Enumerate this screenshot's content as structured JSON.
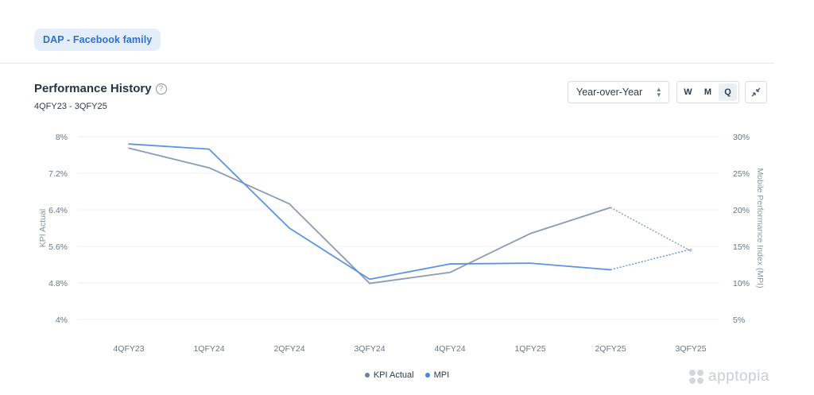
{
  "tab": {
    "label": "DAP - Facebook family"
  },
  "header": {
    "title": "Performance History",
    "subtitle": "4QFY23 - 3QFY25"
  },
  "controls": {
    "comparison_select": {
      "value": "Year-over-Year"
    },
    "granularity": {
      "options": [
        "W",
        "M",
        "Q"
      ],
      "selected": "Q"
    }
  },
  "icons": {
    "help": "help-circle-icon",
    "select_chevron": "chevron-up-down-icon",
    "collapse": "collapse-arrows-icon",
    "brand": "apptopia-logo-icon"
  },
  "brand": {
    "name": "apptopia"
  },
  "chart_data": {
    "type": "line",
    "x": [
      "4QFY23",
      "1QFY24",
      "2QFY24",
      "3QFY24",
      "4QFY24",
      "1QFY25",
      "2QFY25",
      "3QFY25"
    ],
    "left_axis": {
      "label": "KPI Actual",
      "ticks": [
        "8%",
        "7.2%",
        "6.4%",
        "5.6%",
        "4.8%",
        "4%"
      ],
      "range": [
        4,
        8
      ]
    },
    "right_axis": {
      "label": "Mobile Performance Index (MPI)",
      "ticks": [
        "30%",
        "25%",
        "20%",
        "15%",
        "10%",
        "5%"
      ],
      "range": [
        5,
        30
      ]
    },
    "series": [
      {
        "name": "KPI Actual",
        "axis": "left",
        "color": "#8d9bb3",
        "values": [
          7.75,
          7.32,
          6.53,
          4.79,
          5.03,
          5.88,
          6.45,
          5.5
        ],
        "projected_from_index": 6
      },
      {
        "name": "MPI",
        "axis": "right",
        "color": "#5b95e0",
        "values": [
          29.0,
          28.3,
          17.5,
          10.5,
          12.6,
          12.7,
          11.8,
          14.6
        ],
        "projected_from_index": 6
      }
    ],
    "grid": true,
    "legend_position": "bottom-center"
  }
}
